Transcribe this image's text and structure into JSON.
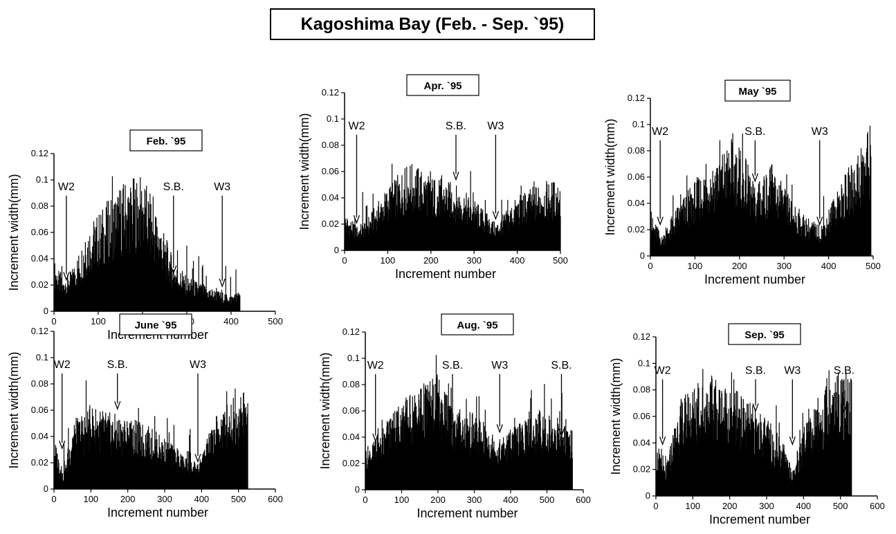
{
  "title": "Kagoshima Bay (Feb. - Sep. `95)",
  "chart_data": [
    {
      "type": "bar",
      "title": "Feb. `95",
      "xlabel": "Increment number",
      "ylabel": "Increment width(mm)",
      "xlim": [
        0,
        500
      ],
      "ylim": [
        0,
        0.12
      ],
      "xticks": [
        "0",
        "100",
        "200",
        "300",
        "400",
        "500"
      ],
      "yticks": [
        "0",
        "0.02",
        "0.04",
        "0.06",
        "0.08",
        "0.1",
        "0.12"
      ],
      "n_increments": 420,
      "width_profile": [
        [
          0,
          0.03
        ],
        [
          20,
          0.018
        ],
        [
          40,
          0.025
        ],
        [
          80,
          0.052
        ],
        [
          120,
          0.065
        ],
        [
          160,
          0.078
        ],
        [
          200,
          0.08
        ],
        [
          230,
          0.06
        ],
        [
          270,
          0.03
        ],
        [
          290,
          0.022
        ],
        [
          320,
          0.018
        ],
        [
          370,
          0.012
        ],
        [
          400,
          0.01
        ],
        [
          420,
          0.012
        ]
      ],
      "annotations": [
        {
          "label": "W2",
          "x": 28,
          "y": 0.025
        },
        {
          "label": "S.B.",
          "x": 270,
          "y": 0.03
        },
        {
          "label": "W3",
          "x": 380,
          "y": 0.02
        }
      ]
    },
    {
      "type": "bar",
      "title": "Apr. `95",
      "xlabel": "Increment number",
      "ylabel": "Increment width(mm)",
      "xlim": [
        0,
        500
      ],
      "ylim": [
        0,
        0.12
      ],
      "xticks": [
        "0",
        "100",
        "200",
        "300",
        "400",
        "500"
      ],
      "yticks": [
        "0",
        "0.02",
        "0.04",
        "0.06",
        "0.08",
        "0.1",
        "0.12"
      ],
      "n_increments": 500,
      "width_profile": [
        [
          0,
          0.022
        ],
        [
          30,
          0.014
        ],
        [
          60,
          0.022
        ],
        [
          100,
          0.038
        ],
        [
          150,
          0.052
        ],
        [
          200,
          0.044
        ],
        [
          250,
          0.04
        ],
        [
          300,
          0.03
        ],
        [
          350,
          0.016
        ],
        [
          400,
          0.032
        ],
        [
          450,
          0.04
        ],
        [
          500,
          0.042
        ]
      ],
      "annotations": [
        {
          "label": "W2",
          "x": 28,
          "y": 0.022
        },
        {
          "label": "S.B.",
          "x": 258,
          "y": 0.055
        },
        {
          "label": "W3",
          "x": 350,
          "y": 0.025
        }
      ]
    },
    {
      "type": "bar",
      "title": "May `95",
      "xlabel": "Increment number",
      "ylabel": "Increment width(mm)",
      "xlim": [
        0,
        500
      ],
      "ylim": [
        0,
        0.12
      ],
      "xticks": [
        "0",
        "100",
        "200",
        "300",
        "400",
        "500"
      ],
      "yticks": [
        "0",
        "0.02",
        "0.04",
        "0.06",
        "0.08",
        "0.1",
        "0.12"
      ],
      "n_increments": 495,
      "width_profile": [
        [
          0,
          0.025
        ],
        [
          25,
          0.012
        ],
        [
          60,
          0.03
        ],
        [
          100,
          0.045
        ],
        [
          150,
          0.06
        ],
        [
          180,
          0.068
        ],
        [
          210,
          0.06
        ],
        [
          235,
          0.04
        ],
        [
          270,
          0.055
        ],
        [
          300,
          0.04
        ],
        [
          340,
          0.025
        ],
        [
          380,
          0.018
        ],
        [
          420,
          0.04
        ],
        [
          470,
          0.065
        ],
        [
          495,
          0.08
        ]
      ],
      "annotations": [
        {
          "label": "W2",
          "x": 22,
          "y": 0.025
        },
        {
          "label": "S.B.",
          "x": 235,
          "y": 0.058
        },
        {
          "label": "W3",
          "x": 380,
          "y": 0.025
        }
      ]
    },
    {
      "type": "bar",
      "title": "June `95",
      "xlabel": "Increment number",
      "ylabel": "Increment width(mm)",
      "xlim": [
        0,
        600
      ],
      "ylim": [
        0,
        0.12
      ],
      "xticks": [
        "0",
        "100",
        "200",
        "300",
        "400",
        "500",
        "600"
      ],
      "yticks": [
        "0",
        "0.02",
        "0.04",
        "0.06",
        "0.08",
        "0.1",
        "0.12"
      ],
      "n_increments": 525,
      "width_profile": [
        [
          0,
          0.03
        ],
        [
          25,
          0.008
        ],
        [
          50,
          0.04
        ],
        [
          100,
          0.05
        ],
        [
          150,
          0.045
        ],
        [
          200,
          0.042
        ],
        [
          250,
          0.038
        ],
        [
          300,
          0.03
        ],
        [
          350,
          0.02
        ],
        [
          390,
          0.015
        ],
        [
          430,
          0.04
        ],
        [
          480,
          0.055
        ],
        [
          525,
          0.058
        ]
      ],
      "annotations": [
        {
          "label": "W2",
          "x": 22,
          "y": 0.032
        },
        {
          "label": "S.B.",
          "x": 172,
          "y": 0.062
        },
        {
          "label": "W3",
          "x": 390,
          "y": 0.022
        }
      ]
    },
    {
      "type": "bar",
      "title": "Aug. `95",
      "xlabel": "Increment number",
      "ylabel": "Increment width(mm)",
      "xlim": [
        0,
        600
      ],
      "ylim": [
        0,
        0.12
      ],
      "xticks": [
        "0",
        "100",
        "200",
        "300",
        "400",
        "500",
        "600"
      ],
      "yticks": [
        "0",
        "0.02",
        "0.04",
        "0.06",
        "0.08",
        "0.1",
        "0.12"
      ],
      "n_increments": 570,
      "width_profile": [
        [
          0,
          0.025
        ],
        [
          30,
          0.03
        ],
        [
          80,
          0.05
        ],
        [
          150,
          0.062
        ],
        [
          200,
          0.068
        ],
        [
          240,
          0.05
        ],
        [
          300,
          0.045
        ],
        [
          370,
          0.03
        ],
        [
          420,
          0.04
        ],
        [
          480,
          0.048
        ],
        [
          540,
          0.042
        ],
        [
          570,
          0.035
        ]
      ],
      "annotations": [
        {
          "label": "W2",
          "x": 28,
          "y": 0.038
        },
        {
          "label": "S.B.",
          "x": 240,
          "y": 0.048
        },
        {
          "label": "W3",
          "x": 370,
          "y": 0.045
        },
        {
          "label": "S.B.",
          "x": 540,
          "y": 0.042
        }
      ]
    },
    {
      "type": "bar",
      "title": "Sep. `95",
      "xlabel": "Increment number",
      "ylabel": "Increment width(mm)",
      "xlim": [
        0,
        600
      ],
      "ylim": [
        0,
        0.12
      ],
      "xticks": [
        "0",
        "100",
        "200",
        "300",
        "400",
        "500",
        "600"
      ],
      "yticks": [
        "0",
        "0.02",
        "0.04",
        "0.06",
        "0.08",
        "0.1",
        "0.12"
      ],
      "n_increments": 530,
      "width_profile": [
        [
          0,
          0.03
        ],
        [
          25,
          0.015
        ],
        [
          60,
          0.055
        ],
        [
          100,
          0.065
        ],
        [
          150,
          0.07
        ],
        [
          200,
          0.065
        ],
        [
          250,
          0.055
        ],
        [
          300,
          0.045
        ],
        [
          340,
          0.035
        ],
        [
          370,
          0.015
        ],
        [
          400,
          0.04
        ],
        [
          450,
          0.06
        ],
        [
          490,
          0.075
        ],
        [
          530,
          0.07
        ]
      ],
      "annotations": [
        {
          "label": "W2",
          "x": 18,
          "y": 0.04
        },
        {
          "label": "S.B.",
          "x": 270,
          "y": 0.065
        },
        {
          "label": "W3",
          "x": 370,
          "y": 0.04
        },
        {
          "label": "S.B.",
          "x": 510,
          "y": 0.065
        }
      ]
    }
  ]
}
